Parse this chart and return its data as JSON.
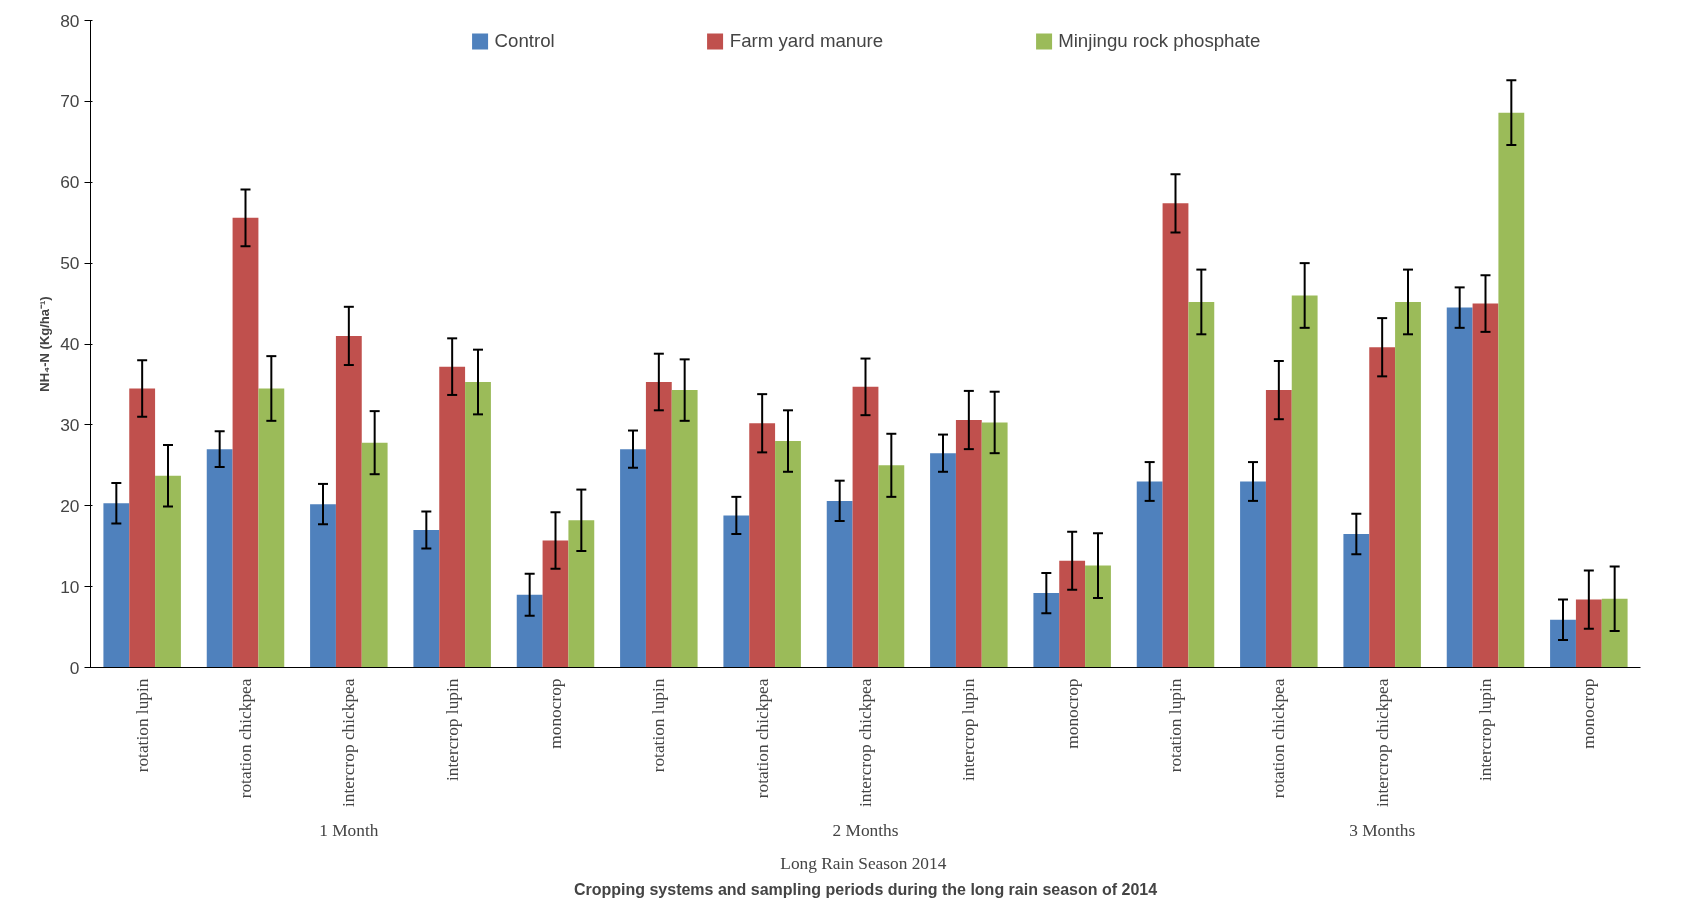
{
  "chart_data": {
    "type": "bar",
    "xlabel": "Cropping systems and sampling periods during the long rain season of 2014",
    "ylabel": "NH₄-N (Kg/ha⁻¹)",
    "categories": [
      "rotation lupin",
      "rotation chickpea",
      "intercrop chickpea",
      "intercrop lupin",
      "monocrop",
      "rotation lupin",
      "rotation chickpea",
      "intercrop chickpea",
      "intercrop lupin",
      "monocrop",
      "rotation lupin",
      "rotation chickpea",
      "intercrop chickpea",
      "intercrop lupin",
      "monocrop"
    ],
    "annotations": [
      "1 Month",
      "2 Months",
      "3 Months",
      "Long Rain Season  2014"
    ],
    "series": [
      {
        "name": "Control",
        "color": "#4f81bd",
        "values": [
          20.3,
          27,
          20.2,
          17,
          9,
          27,
          18.8,
          20.6,
          26.5,
          9.2,
          23,
          23,
          16.5,
          44.5,
          5.9
        ],
        "errors": [
          2.5,
          2.2,
          2.5,
          2.3,
          2.6,
          2.3,
          2.3,
          2.5,
          2.3,
          2.5,
          2.4,
          2.4,
          2.5,
          2.5,
          2.5
        ]
      },
      {
        "name": "Farm yard manure",
        "color": "#c0504d",
        "values": [
          34.5,
          55.6,
          41,
          37.2,
          15.7,
          35.3,
          30.2,
          34.7,
          30.6,
          13.2,
          57.4,
          34.3,
          39.6,
          45,
          8.4
        ],
        "errors": [
          3.5,
          3.5,
          3.6,
          3.5,
          3.5,
          3.5,
          3.6,
          3.5,
          3.6,
          3.6,
          3.6,
          3.6,
          3.6,
          3.5,
          3.6
        ]
      },
      {
        "name": "Minjingu rock phosphate",
        "color": "#9bbb59",
        "values": [
          23.7,
          34.5,
          27.8,
          35.3,
          18.2,
          34.3,
          28,
          25,
          30.3,
          12.6,
          45.2,
          46,
          45.2,
          68.6,
          8.5
        ],
        "errors": [
          3.8,
          4,
          3.9,
          4,
          3.8,
          3.8,
          3.8,
          3.9,
          3.8,
          4,
          4,
          4,
          4,
          4,
          4
        ]
      }
    ],
    "ylim": [
      0,
      80
    ],
    "yticks": [
      0,
      10,
      20,
      30,
      40,
      50,
      60,
      70,
      80
    ],
    "legend": "top",
    "grid": false
  }
}
